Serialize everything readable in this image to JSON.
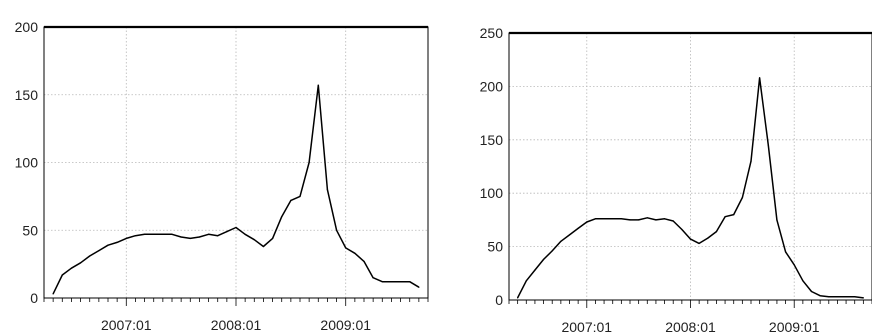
{
  "chart_data": [
    {
      "type": "line",
      "title": "",
      "xlabel": "",
      "ylabel": "",
      "ylim": [
        0,
        200
      ],
      "yticks": [
        0,
        50,
        100,
        150,
        200
      ],
      "xticks": [
        "2007:01",
        "2008:01",
        "2009:01"
      ],
      "grid": true,
      "x": [
        "2006:05",
        "2006:06",
        "2006:07",
        "2006:08",
        "2006:09",
        "2006:10",
        "2006:11",
        "2006:12",
        "2007:01",
        "2007:02",
        "2007:03",
        "2007:04",
        "2007:05",
        "2007:06",
        "2007:07",
        "2007:08",
        "2007:09",
        "2007:10",
        "2007:11",
        "2007:12",
        "2008:01",
        "2008:02",
        "2008:03",
        "2008:04",
        "2008:05",
        "2008:06",
        "2008:07",
        "2008:08",
        "2008:09",
        "2008:10",
        "2008:11",
        "2008:12",
        "2009:01",
        "2009:02",
        "2009:03",
        "2009:04",
        "2009:05",
        "2009:06",
        "2009:07",
        "2009:08",
        "2009:09"
      ],
      "series": [
        {
          "values": [
            3,
            17,
            22,
            26,
            31,
            35,
            39,
            41,
            44,
            46,
            47,
            47,
            47,
            47,
            45,
            44,
            45,
            47,
            46,
            49,
            52,
            47,
            43,
            38,
            44,
            60,
            72,
            75,
            100,
            157,
            80,
            50,
            37,
            33,
            27,
            15,
            12,
            12,
            12,
            12,
            8
          ]
        }
      ]
    },
    {
      "type": "line",
      "title": "",
      "xlabel": "",
      "ylabel": "",
      "ylim": [
        0,
        250
      ],
      "yticks": [
        0,
        50,
        100,
        150,
        200,
        250
      ],
      "xticks": [
        "2007:01",
        "2008:01",
        "2009:01"
      ],
      "grid": true,
      "x": [
        "2006:05",
        "2006:06",
        "2006:07",
        "2006:08",
        "2006:09",
        "2006:10",
        "2006:11",
        "2006:12",
        "2007:01",
        "2007:02",
        "2007:03",
        "2007:04",
        "2007:05",
        "2007:06",
        "2007:07",
        "2007:08",
        "2007:09",
        "2007:10",
        "2007:11",
        "2007:12",
        "2008:01",
        "2008:02",
        "2008:03",
        "2008:04",
        "2008:05",
        "2008:06",
        "2008:07",
        "2008:08",
        "2008:09",
        "2008:10",
        "2008:11",
        "2008:12",
        "2009:01",
        "2009:02",
        "2009:03",
        "2009:04",
        "2009:05",
        "2009:06",
        "2009:07",
        "2009:08",
        "2009:09"
      ],
      "series": [
        {
          "values": [
            2,
            18,
            28,
            38,
            46,
            55,
            61,
            67,
            73,
            76,
            76,
            76,
            76,
            75,
            75,
            77,
            75,
            76,
            74,
            66,
            57,
            53,
            58,
            64,
            78,
            80,
            96,
            130,
            208,
            145,
            75,
            45,
            33,
            18,
            8,
            4,
            3,
            3,
            3,
            3,
            2
          ]
        }
      ]
    }
  ]
}
